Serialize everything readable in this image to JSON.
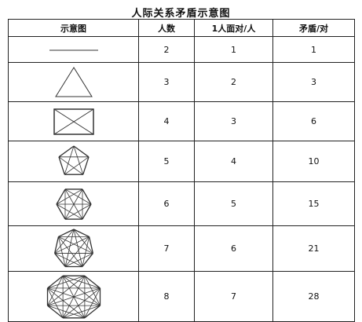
{
  "title": "人际关系矛盾示意图",
  "headers": [
    "示意图",
    "人数",
    "1人面对/人",
    "矛盾/对"
  ],
  "rows": [
    {
      "people": "2",
      "face": "1",
      "conflicts": "1"
    },
    {
      "people": "3",
      "face": "2",
      "conflicts": "3"
    },
    {
      "people": "4",
      "face": "3",
      "conflicts": "6"
    },
    {
      "people": "5",
      "face": "4",
      "conflicts": "10"
    },
    {
      "people": "6",
      "face": "5",
      "conflicts": "15"
    },
    {
      "people": "7",
      "face": "6",
      "conflicts": "21"
    },
    {
      "people": "8",
      "face": "7",
      "conflicts": "28"
    }
  ]
}
